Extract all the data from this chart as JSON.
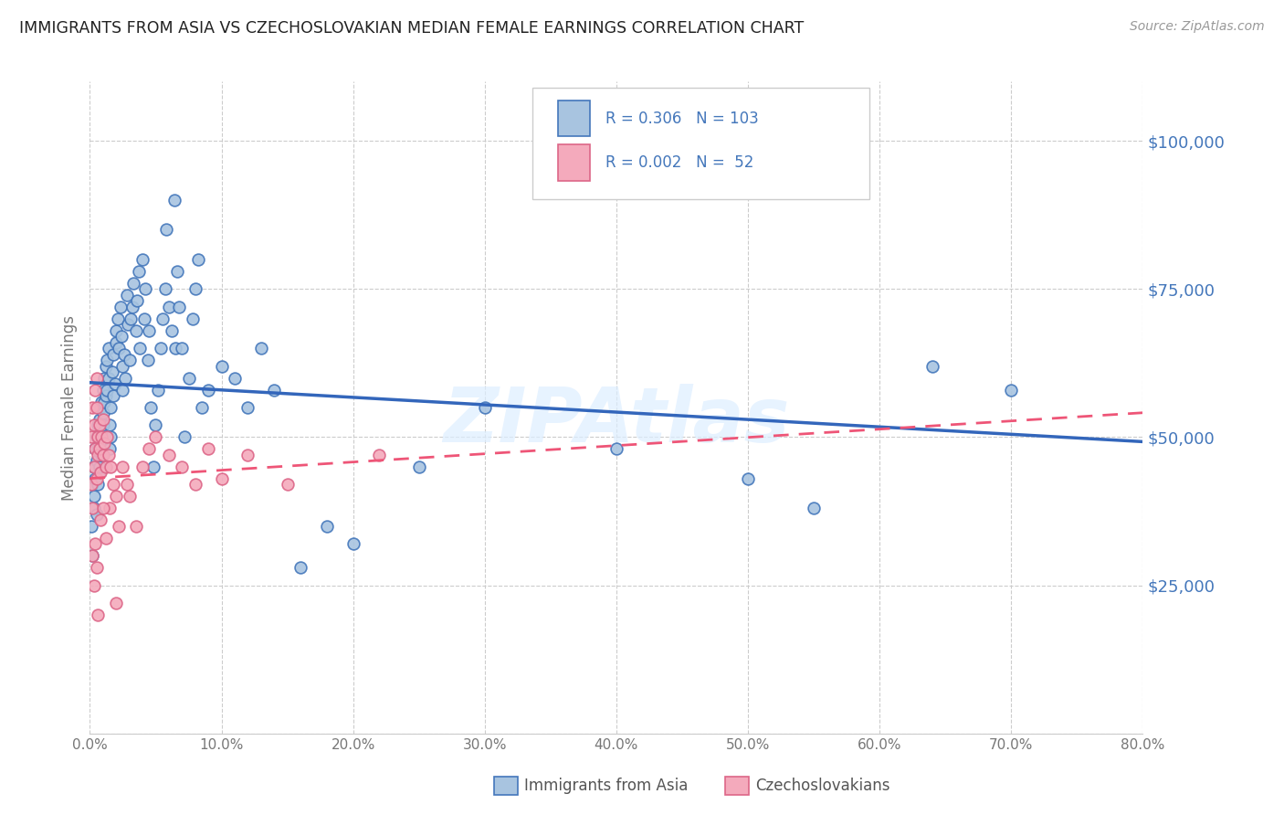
{
  "title": "IMMIGRANTS FROM ASIA VS CZECHOSLOVAKIAN MEDIAN FEMALE EARNINGS CORRELATION CHART",
  "source": "Source: ZipAtlas.com",
  "watermark": "ZIPAtlas",
  "ylabel": "Median Female Earnings",
  "blue_R": 0.306,
  "blue_N": 103,
  "pink_R": 0.002,
  "pink_N": 52,
  "blue_fill": "#A8C4E0",
  "blue_edge": "#4477BB",
  "pink_fill": "#F4AABC",
  "pink_edge": "#DD6688",
  "blue_line_color": "#3366BB",
  "pink_line_color": "#EE5577",
  "axis_label_color": "#4477BB",
  "title_color": "#222222",
  "source_color": "#999999",
  "watermark_color": "#DDEEFF",
  "grid_color": "#CCCCCC",
  "xlabel_color": "#777777",
  "ylabel_color": "#777777",
  "legend_label_blue": "Immigrants from Asia",
  "legend_label_pink": "Czechoslovakians",
  "xmin": 0.0,
  "xmax": 0.8,
  "ymin": 0,
  "ymax": 110000,
  "blue_scatter_x": [
    0.001,
    0.002,
    0.002,
    0.003,
    0.003,
    0.003,
    0.004,
    0.004,
    0.005,
    0.005,
    0.005,
    0.006,
    0.006,
    0.006,
    0.007,
    0.007,
    0.007,
    0.007,
    0.008,
    0.008,
    0.009,
    0.009,
    0.01,
    0.01,
    0.01,
    0.011,
    0.011,
    0.012,
    0.012,
    0.013,
    0.013,
    0.014,
    0.014,
    0.015,
    0.015,
    0.016,
    0.016,
    0.017,
    0.018,
    0.018,
    0.019,
    0.02,
    0.02,
    0.021,
    0.022,
    0.023,
    0.024,
    0.025,
    0.025,
    0.026,
    0.027,
    0.028,
    0.029,
    0.03,
    0.031,
    0.032,
    0.033,
    0.035,
    0.036,
    0.037,
    0.038,
    0.04,
    0.041,
    0.042,
    0.044,
    0.045,
    0.046,
    0.048,
    0.05,
    0.052,
    0.054,
    0.055,
    0.057,
    0.058,
    0.06,
    0.062,
    0.064,
    0.065,
    0.066,
    0.068,
    0.07,
    0.072,
    0.075,
    0.078,
    0.08,
    0.082,
    0.085,
    0.09,
    0.1,
    0.11,
    0.12,
    0.13,
    0.14,
    0.16,
    0.18,
    0.2,
    0.25,
    0.3,
    0.4,
    0.5,
    0.55,
    0.64,
    0.7
  ],
  "blue_scatter_y": [
    35000,
    30000,
    42000,
    38000,
    45000,
    40000,
    48000,
    43000,
    37000,
    50000,
    46000,
    42000,
    52000,
    48000,
    44000,
    53000,
    49000,
    45000,
    55000,
    51000,
    47000,
    56000,
    52000,
    58000,
    54000,
    60000,
    56000,
    62000,
    57000,
    63000,
    58000,
    65000,
    60000,
    52000,
    48000,
    50000,
    55000,
    61000,
    57000,
    64000,
    59000,
    66000,
    68000,
    70000,
    65000,
    72000,
    67000,
    62000,
    58000,
    64000,
    60000,
    74000,
    69000,
    63000,
    70000,
    72000,
    76000,
    68000,
    73000,
    78000,
    65000,
    80000,
    70000,
    75000,
    63000,
    68000,
    55000,
    45000,
    52000,
    58000,
    65000,
    70000,
    75000,
    85000,
    72000,
    68000,
    90000,
    65000,
    78000,
    72000,
    65000,
    50000,
    60000,
    70000,
    75000,
    80000,
    55000,
    58000,
    62000,
    60000,
    55000,
    65000,
    58000,
    28000,
    35000,
    32000,
    45000,
    55000,
    48000,
    43000,
    38000,
    62000,
    58000
  ],
  "pink_scatter_x": [
    0.001,
    0.001,
    0.002,
    0.002,
    0.003,
    0.003,
    0.004,
    0.004,
    0.005,
    0.005,
    0.005,
    0.006,
    0.006,
    0.007,
    0.007,
    0.008,
    0.009,
    0.01,
    0.01,
    0.011,
    0.012,
    0.013,
    0.014,
    0.015,
    0.016,
    0.018,
    0.02,
    0.022,
    0.025,
    0.028,
    0.03,
    0.035,
    0.04,
    0.045,
    0.05,
    0.06,
    0.07,
    0.08,
    0.09,
    0.1,
    0.12,
    0.15,
    0.002,
    0.003,
    0.004,
    0.005,
    0.006,
    0.008,
    0.01,
    0.012,
    0.02,
    0.22
  ],
  "pink_scatter_y": [
    42000,
    50000,
    38000,
    55000,
    45000,
    52000,
    48000,
    58000,
    43000,
    60000,
    55000,
    50000,
    47000,
    52000,
    48000,
    44000,
    50000,
    47000,
    53000,
    49000,
    45000,
    50000,
    47000,
    38000,
    45000,
    42000,
    40000,
    35000,
    45000,
    42000,
    40000,
    35000,
    45000,
    48000,
    50000,
    47000,
    45000,
    42000,
    48000,
    43000,
    47000,
    42000,
    30000,
    25000,
    32000,
    28000,
    20000,
    36000,
    38000,
    33000,
    22000,
    47000
  ]
}
